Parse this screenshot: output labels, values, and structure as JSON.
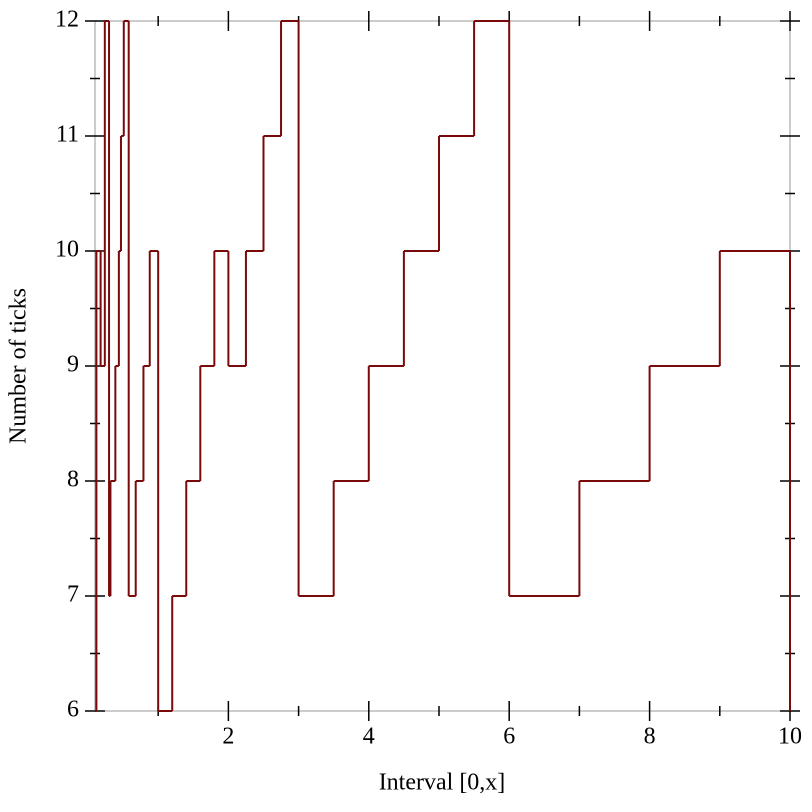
{
  "chart_data": {
    "type": "step",
    "xlabel": "Interval [0,x]",
    "ylabel": "Number of ticks",
    "x": [
      0.1,
      0.12,
      0.18,
      0.24,
      0.3,
      0.32,
      0.39,
      0.44,
      0.47,
      0.51,
      0.58,
      0.68,
      0.79,
      0.88,
      1.0,
      1.2,
      1.4,
      1.6,
      1.8,
      2.0,
      2.25,
      2.5,
      2.75,
      3.0,
      3.5,
      4.0,
      4.5,
      5.0,
      5.5,
      6.0,
      7.0,
      8.0,
      9.0,
      10.0
    ],
    "values": [
      6,
      10,
      9,
      12,
      7,
      8,
      9,
      10,
      11,
      12,
      7,
      8,
      9,
      10,
      6,
      7,
      8,
      9,
      10,
      9,
      10,
      11,
      12,
      7,
      8,
      9,
      10,
      11,
      12,
      7,
      8,
      9,
      10,
      6
    ],
    "color": "#7a0a0a",
    "xlim": [
      0.1,
      10
    ],
    "ylim": [
      6,
      12
    ],
    "xticks": [
      2,
      4,
      6,
      8,
      10
    ],
    "xminorticks": [
      1,
      3,
      5,
      7,
      9
    ],
    "yticks": [
      6,
      7,
      8,
      9,
      10,
      11,
      12
    ],
    "yminorticks": [
      6.5,
      7.5,
      8.5,
      9.5,
      10.5,
      11.5
    ]
  }
}
